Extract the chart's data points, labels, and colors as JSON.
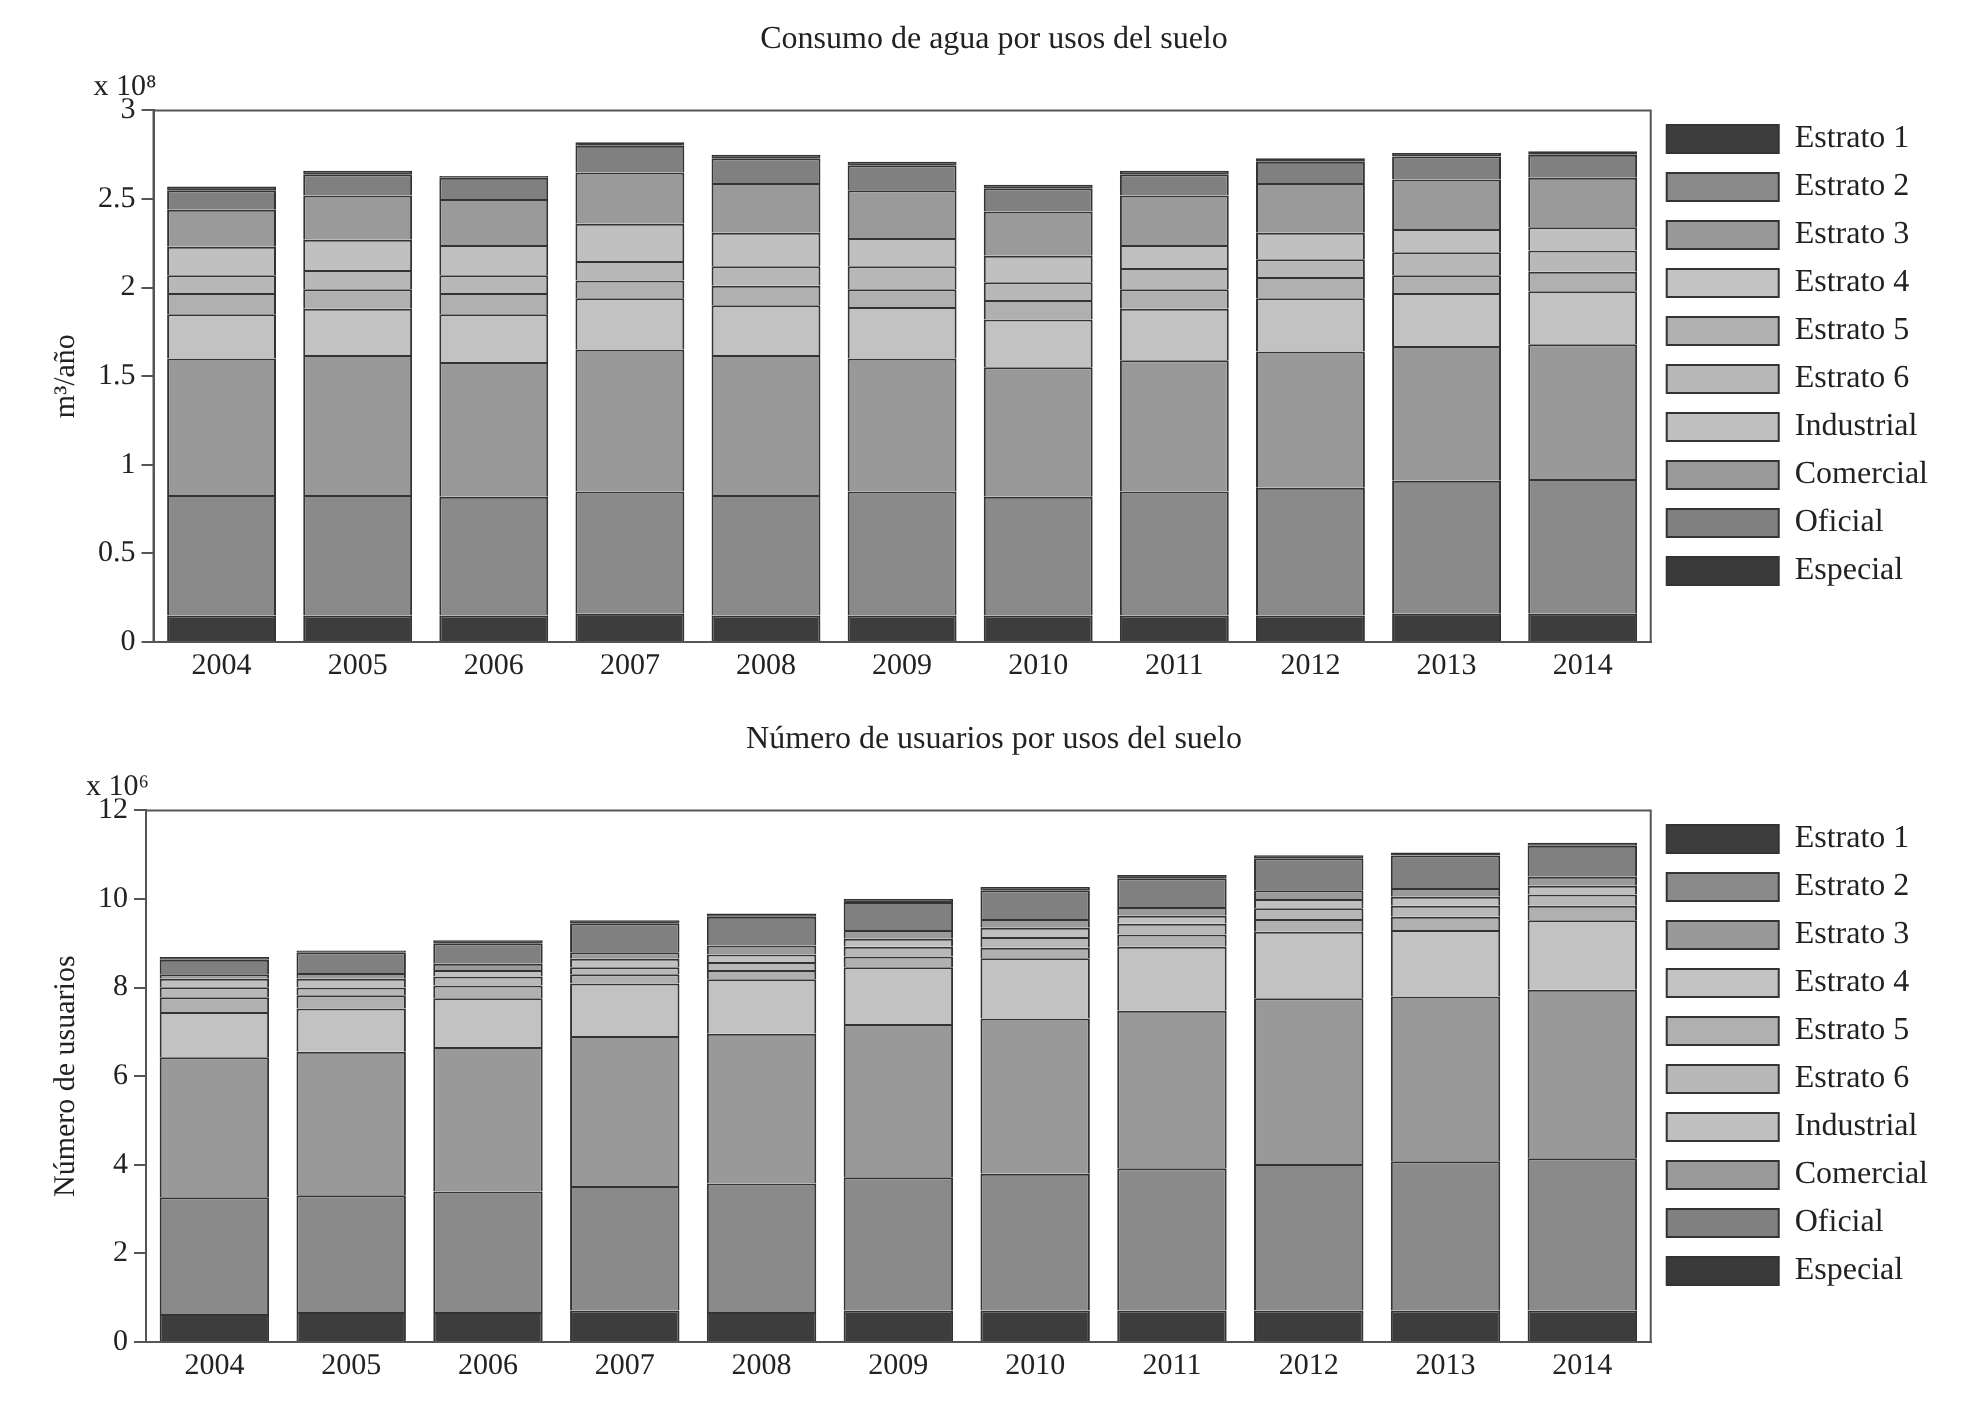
{
  "chart_data": [
    {
      "type": "bar",
      "title": "Consumo de agua por usos del suelo",
      "ylabel": "m³/año",
      "annotations": [
        "x 10⁸"
      ],
      "categories": [
        "2004",
        "2005",
        "2006",
        "2007",
        "2008",
        "2009",
        "2010",
        "2011",
        "2012",
        "2013",
        "2014"
      ],
      "stacked": true,
      "legend": "right",
      "grid": false,
      "ylim": [
        0,
        3
      ],
      "yticks": [
        0,
        0.5,
        1,
        1.5,
        2,
        2.5,
        3
      ],
      "series": [
        {
          "name": "Estrato 1",
          "color": "#3d3d3d",
          "values": [
            0.15,
            0.15,
            0.15,
            0.16,
            0.15,
            0.15,
            0.15,
            0.15,
            0.15,
            0.16,
            0.16
          ]
        },
        {
          "name": "Estrato 2",
          "color": "#8a8a8a",
          "values": [
            0.68,
            0.68,
            0.67,
            0.69,
            0.68,
            0.7,
            0.67,
            0.7,
            0.72,
            0.75,
            0.76
          ]
        },
        {
          "name": "Estrato 3",
          "color": "#999999",
          "values": [
            0.77,
            0.79,
            0.76,
            0.8,
            0.79,
            0.75,
            0.73,
            0.74,
            0.77,
            0.76,
            0.76
          ]
        },
        {
          "name": "Estrato 4",
          "color": "#c2c2c2",
          "values": [
            0.25,
            0.26,
            0.27,
            0.29,
            0.28,
            0.29,
            0.27,
            0.29,
            0.3,
            0.3,
            0.3
          ]
        },
        {
          "name": "Estrato 5",
          "color": "#b0b0b0",
          "values": [
            0.12,
            0.11,
            0.12,
            0.1,
            0.11,
            0.1,
            0.11,
            0.11,
            0.12,
            0.1,
            0.11
          ]
        },
        {
          "name": "Estrato 6",
          "color": "#b8b8b8",
          "values": [
            0.1,
            0.11,
            0.1,
            0.11,
            0.11,
            0.13,
            0.1,
            0.12,
            0.1,
            0.13,
            0.12
          ]
        },
        {
          "name": "Industrial",
          "color": "#c0c0c0",
          "values": [
            0.16,
            0.17,
            0.17,
            0.21,
            0.19,
            0.16,
            0.15,
            0.13,
            0.15,
            0.13,
            0.13
          ]
        },
        {
          "name": "Comercial",
          "color": "#9a9a9a",
          "values": [
            0.21,
            0.25,
            0.26,
            0.29,
            0.28,
            0.27,
            0.25,
            0.28,
            0.28,
            0.28,
            0.28
          ]
        },
        {
          "name": "Oficial",
          "color": "#808080",
          "values": [
            0.11,
            0.12,
            0.12,
            0.15,
            0.14,
            0.14,
            0.13,
            0.12,
            0.12,
            0.13,
            0.13
          ]
        },
        {
          "name": "Especial",
          "color": "#3a3a3a",
          "values": [
            0.02,
            0.02,
            0.01,
            0.02,
            0.02,
            0.02,
            0.02,
            0.02,
            0.02,
            0.02,
            0.02
          ]
        }
      ]
    },
    {
      "type": "bar",
      "title": "Número de usuarios por usos del suelo",
      "ylabel": "Número de usuarios",
      "annotations": [
        "x 10⁶"
      ],
      "categories": [
        "2004",
        "2005",
        "2006",
        "2007",
        "2008",
        "2009",
        "2010",
        "2011",
        "2012",
        "2013",
        "2014"
      ],
      "stacked": true,
      "legend": "right",
      "grid": false,
      "ylim": [
        0,
        12
      ],
      "yticks": [
        0,
        2,
        4,
        6,
        8,
        10,
        12
      ],
      "series": [
        {
          "name": "Estrato 1",
          "color": "#3d3d3d",
          "values": [
            0.63,
            0.68,
            0.68,
            0.71,
            0.68,
            0.71,
            0.71,
            0.71,
            0.71,
            0.71,
            0.71
          ]
        },
        {
          "name": "Estrato 2",
          "color": "#8a8a8a",
          "values": [
            2.64,
            2.63,
            2.72,
            2.81,
            2.9,
            3.01,
            3.09,
            3.21,
            3.31,
            3.37,
            3.44
          ]
        },
        {
          "name": "Estrato 3",
          "color": "#999999",
          "values": [
            3.16,
            3.24,
            3.26,
            3.39,
            3.38,
            3.46,
            3.5,
            3.56,
            3.74,
            3.72,
            3.8
          ]
        },
        {
          "name": "Estrato 4",
          "color": "#c2c2c2",
          "values": [
            1.02,
            0.98,
            1.1,
            1.18,
            1.23,
            1.28,
            1.36,
            1.44,
            1.5,
            1.5,
            1.57
          ]
        },
        {
          "name": "Estrato 5",
          "color": "#b0b0b0",
          "values": [
            0.33,
            0.3,
            0.29,
            0.21,
            0.21,
            0.24,
            0.24,
            0.28,
            0.29,
            0.3,
            0.33
          ]
        },
        {
          "name": "Estrato 6",
          "color": "#b8b8b8",
          "values": [
            0.23,
            0.17,
            0.2,
            0.16,
            0.18,
            0.22,
            0.24,
            0.24,
            0.24,
            0.25,
            0.25
          ]
        },
        {
          "name": "Industrial",
          "color": "#c0c0c0",
          "values": [
            0.19,
            0.2,
            0.15,
            0.19,
            0.17,
            0.18,
            0.21,
            0.18,
            0.21,
            0.2,
            0.2
          ]
        },
        {
          "name": "Comercial",
          "color": "#9a9a9a",
          "values": [
            0.1,
            0.13,
            0.14,
            0.15,
            0.2,
            0.2,
            0.2,
            0.2,
            0.2,
            0.2,
            0.2
          ]
        },
        {
          "name": "Oficial",
          "color": "#808080",
          "values": [
            0.33,
            0.47,
            0.46,
            0.65,
            0.65,
            0.63,
            0.65,
            0.65,
            0.72,
            0.73,
            0.7
          ]
        },
        {
          "name": "Especial",
          "color": "#3a3a3a",
          "values": [
            0.06,
            0.04,
            0.07,
            0.07,
            0.07,
            0.07,
            0.07,
            0.07,
            0.07,
            0.07,
            0.07
          ]
        }
      ]
    }
  ]
}
